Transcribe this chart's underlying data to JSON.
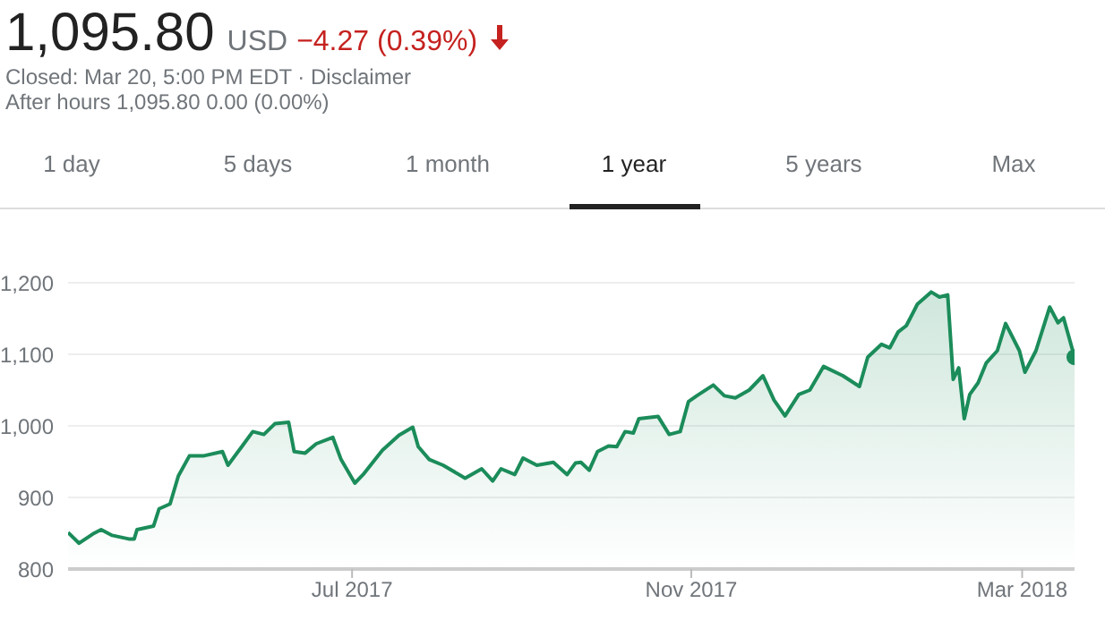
{
  "chart_data": {
    "type": "area",
    "title": "1,095.80",
    "annotations": [
      "USD",
      "−4.27 (0.39%)",
      "Closed: Mar 20, 5:00 PM EDT · Disclaimer",
      "After hours 1,095.80 0.00 (0.00%)",
      "1 day",
      "5 days",
      "1 month",
      "1 year",
      "5 years",
      "Max"
    ],
    "xlim": [
      "2017-03-20",
      "2018-03-20"
    ],
    "xticks": [
      {
        "value": "2017-07-01",
        "label": "Jul 2017"
      },
      {
        "value": "2017-11-01",
        "label": "Nov 2017"
      },
      {
        "value": "2018-03-01",
        "label": "Mar 2018"
      }
    ],
    "ylim": [
      800,
      1200
    ],
    "yticks": [
      800,
      900,
      {
        "value": 1000,
        "label": "1,000"
      },
      {
        "value": 1100,
        "label": "1,100"
      },
      {
        "value": 1200,
        "label": "1,200"
      }
    ],
    "grid": "y",
    "legend": false,
    "series": [
      {
        "color": "#1b8c5a",
        "x": [
          "2017-03-20",
          "2017-03-24",
          "2017-03-29",
          "2017-04-01",
          "2017-04-05",
          "2017-04-11",
          "2017-04-13",
          "2017-04-14",
          "2017-04-20",
          "2017-04-22",
          "2017-04-26",
          "2017-04-29",
          "2017-05-03",
          "2017-05-08",
          "2017-05-15",
          "2017-05-17",
          "2017-05-22",
          "2017-05-26",
          "2017-05-30",
          "2017-06-03",
          "2017-06-08",
          "2017-06-10",
          "2017-06-14",
          "2017-06-18",
          "2017-06-24",
          "2017-06-27",
          "2017-07-02",
          "2017-07-05",
          "2017-07-12",
          "2017-07-18",
          "2017-07-23",
          "2017-07-25",
          "2017-07-29",
          "2017-08-03",
          "2017-08-11",
          "2017-08-17",
          "2017-08-21",
          "2017-08-24",
          "2017-08-29",
          "2017-09-01",
          "2017-09-06",
          "2017-09-12",
          "2017-09-17",
          "2017-09-20",
          "2017-09-22",
          "2017-09-25",
          "2017-09-28",
          "2017-10-02",
          "2017-10-05",
          "2017-10-08",
          "2017-10-11",
          "2017-10-13",
          "2017-10-20",
          "2017-10-24",
          "2017-10-28",
          "2017-10-31",
          "2017-11-03",
          "2017-11-09",
          "2017-11-13",
          "2017-11-17",
          "2017-11-22",
          "2017-11-27",
          "2017-12-01",
          "2017-12-05",
          "2017-12-10",
          "2017-12-14",
          "2017-12-19",
          "2017-12-26",
          "2018-01-01",
          "2018-01-04",
          "2018-01-09",
          "2018-01-12",
          "2018-01-15",
          "2018-01-18",
          "2018-01-22",
          "2018-01-27",
          "2018-01-30",
          "2018-02-02",
          "2018-02-04",
          "2018-02-06",
          "2018-02-08",
          "2018-02-10",
          "2018-02-13",
          "2018-02-16",
          "2018-02-20",
          "2018-02-23",
          "2018-02-28",
          "2018-03-02",
          "2018-03-06",
          "2018-03-11",
          "2018-03-14",
          "2018-03-16",
          "2018-03-20"
        ],
        "values": [
          851,
          836,
          849,
          855,
          847,
          842,
          842,
          855,
          860,
          884,
          891,
          930,
          958,
          958,
          964,
          945,
          971,
          992,
          988,
          1003,
          1005,
          964,
          962,
          975,
          984,
          953,
          920,
          932,
          966,
          987,
          998,
          971,
          953,
          945,
          927,
          940,
          923,
          940,
          932,
          955,
          945,
          949,
          932,
          948,
          949,
          938,
          964,
          972,
          971,
          992,
          990,
          1010,
          1013,
          988,
          992,
          1034,
          1042,
          1057,
          1042,
          1039,
          1050,
          1070,
          1036,
          1014,
          1044,
          1050,
          1083,
          1070,
          1055,
          1096,
          1114,
          1109,
          1131,
          1140,
          1170,
          1187,
          1180,
          1183,
          1065,
          1081,
          1010,
          1044,
          1060,
          1088,
          1105,
          1143,
          1105,
          1075,
          1105,
          1166,
          1144,
          1151,
          1096
        ]
      },
      {
        "type": "scatter",
        "color": "#1b8c5a",
        "marker": "circle",
        "x": [
          "2018-03-20"
        ],
        "values": [
          1096
        ]
      }
    ]
  }
}
